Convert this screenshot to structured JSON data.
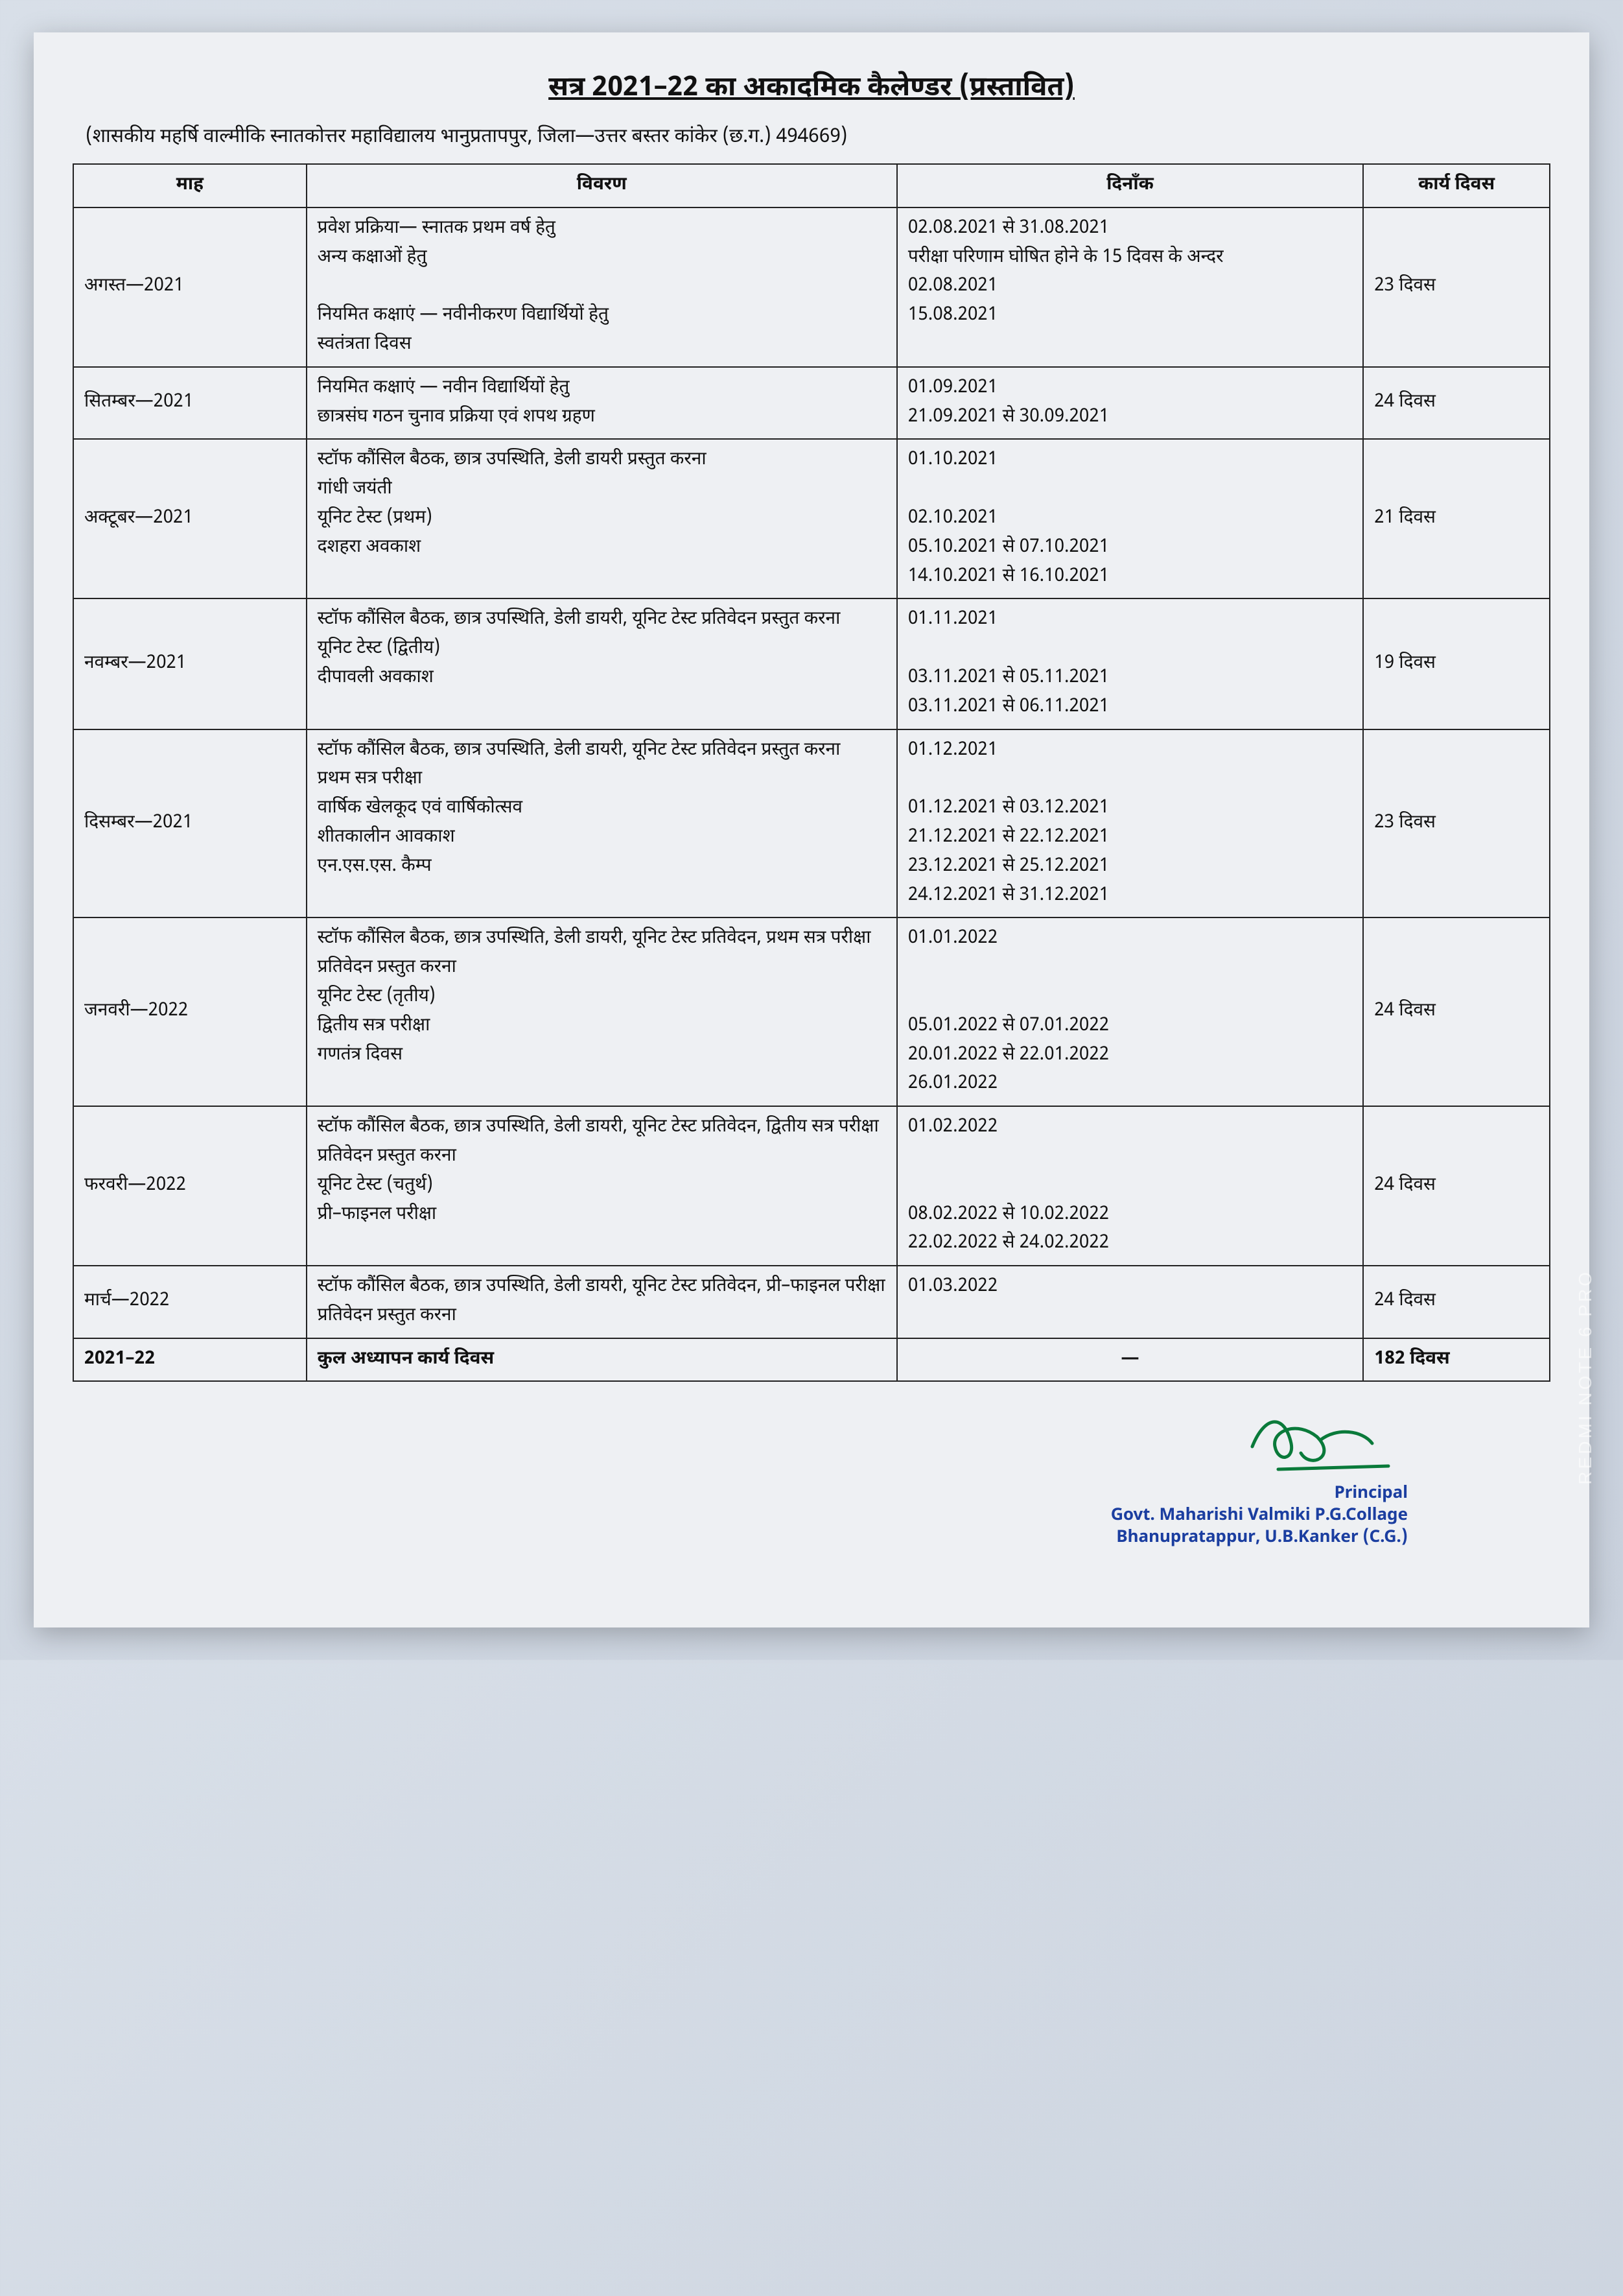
{
  "title": "सत्र 2021–22 का अकादमिक कैलेण्डर (प्रस्तावित)",
  "subtitle": "(शासकीय महर्षि वाल्मीकि स्नातकोत्तर महाविद्यालय भानुप्रतापपुर, जिला—उत्तर बस्तर कांकेर (छ.ग.) 494669)",
  "columns": [
    "माह",
    "विवरण",
    "दिनाँक",
    "कार्य दिवस"
  ],
  "rows": [
    {
      "month": "अगस्त—2021",
      "desc": "प्रवेश प्रक्रिया— स्नातक प्रथम वर्ष हेतु\n                       अन्य कक्षाओं हेतु\n\nनियमित कक्षाएं — नवीनीकरण विद्यार्थियों हेतु\nस्वतंत्रता दिवस",
      "dates": "02.08.2021 से 31.08.2021\nपरीक्षा परिणाम घोषित होने के 15 दिवस के अन्दर\n02.08.2021\n15.08.2021",
      "days": "23 दिवस"
    },
    {
      "month": "सितम्बर—2021",
      "desc": "नियमित कक्षाएं — नवीन विद्यार्थियों हेतु\nछात्रसंघ गठन चुनाव प्रक्रिया एवं शपथ ग्रहण",
      "dates": "01.09.2021\n21.09.2021 से 30.09.2021",
      "days": "24 दिवस"
    },
    {
      "month": "अक्टूबर—2021",
      "desc": "स्टॉफ कौंसिल बैठक, छात्र उपस्थिति, डेली डायरी प्रस्तुत करना\nगांधी जयंती\nयूनिट टेस्ट (प्रथम)\nदशहरा अवकाश",
      "dates": "01.10.2021\n\n02.10.2021\n05.10.2021 से 07.10.2021\n14.10.2021 से 16.10.2021",
      "days": "21 दिवस"
    },
    {
      "month": "नवम्बर—2021",
      "desc": "स्टॉफ कौंसिल बैठक, छात्र उपस्थिति, डेली डायरी, यूनिट टेस्‍ट प्रतिवेदन प्रस्तुत करना\nयूनिट टेस्ट (द्वितीय)\nदीपावली अवकाश",
      "dates": "01.11.2021\n\n03.11.2021 से 05.11.2021\n03.11.2021 से 06.11.2021",
      "days": "19 दिवस"
    },
    {
      "month": "दिसम्बर—2021",
      "desc": "स्टॉफ कौंसिल बैठक, छात्र उपस्थिति, डेली डायरी, यूनिट टेस्‍ट प्रतिवेदन प्रस्तुत करना\nप्रथम सत्र परीक्षा\nवार्षिक खेलकूद एवं वार्षिकोत्सव\nशीतकालीन आवकाश\nएन.एस.एस. कैम्प",
      "dates": "01.12.2021\n\n01.12.2021 से 03.12.2021\n21.12.2021 से 22.12.2021\n23.12.2021 से 25.12.2021\n24.12.2021 से 31.12.2021",
      "days": "23 दिवस"
    },
    {
      "month": "जनवरी—2022",
      "desc": "स्टॉफ कौंसिल बैठक, छात्र उपस्थिति, डेली डायरी, यूनिट टेस्‍ट प्रतिवेदन, प्रथम सत्र परीक्षा प्रतिवेदन प्रस्तुत करना\nयूनिट टेस्ट (तृतीय)\nद्वितीय सत्र परीक्षा\nगणतंत्र दिवस",
      "dates": "01.01.2022\n\n\n05.01.2022 से 07.01.2022\n20.01.2022 से 22.01.2022\n26.01.2022",
      "days": "24 दिवस"
    },
    {
      "month": "फरवरी—2022",
      "desc": "स्टॉफ कौंसिल बैठक, छात्र उपस्थिति, डेली डायरी, यूनिट टेस्‍ट प्रतिवेदन, द्वितीय सत्र परीक्षा प्रतिवेदन प्रस्तुत करना\nयूनिट टेस्ट (चतुर्थ)\nप्री–फाइनल परीक्षा",
      "dates": "01.02.2022\n\n\n08.02.2022 से 10.02.2022\n22.02.2022 से 24.02.2022",
      "days": "24 दिवस"
    },
    {
      "month": "मार्च—2022",
      "desc": "स्टॉफ कौंसिल बैठक, छात्र उपस्थिति, डेली डायरी, यूनिट टेस्‍ट प्रतिवेदन, प्री–फाइनल परीक्षा प्रतिवेदन प्रस्तुत करना",
      "dates": "01.03.2022",
      "days": "24 दिवस"
    }
  ],
  "total": {
    "year": "2021–22",
    "label": "कुल अध्यापन कार्य दिवस",
    "dash": "—",
    "days": "182 दिवस"
  },
  "signature": {
    "principal": "Principal",
    "line1": "Govt. Maharishi Valmiki P.G.Collage",
    "line2": "Bhanupratappur, U.B.Kanker (C.G.)",
    "ink_color": "#0a7a3a"
  },
  "watermark": "REDMI NOTE 6 PRO",
  "style": {
    "border_color": "#222222",
    "page_bg": "#eef0f3",
    "body_bg_from": "#d8dfe8",
    "body_bg_to": "#c8d0dc",
    "title_fontsize": 42,
    "table_fontsize": 28,
    "sig_color": "#1b3ea0"
  }
}
